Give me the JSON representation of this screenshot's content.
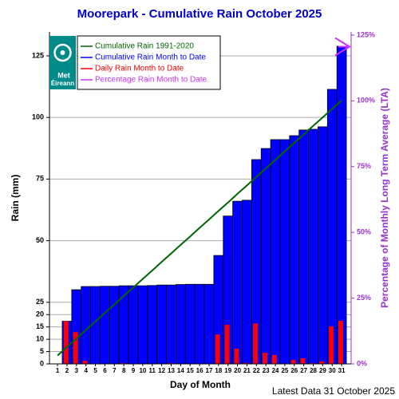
{
  "chart_data": {
    "type": "bar",
    "title": "Moorepark - Cumulative Rain October   2025",
    "xlabel": "Day of Month",
    "ylabel": "Rain (mm)",
    "y2label": "Percentage  of Monthly Long Term Average (LTA)",
    "footer": "Latest Data 31 October 2025",
    "logo": [
      "Met",
      "Éireann"
    ],
    "x": [
      1,
      2,
      3,
      4,
      5,
      6,
      7,
      8,
      9,
      10,
      11,
      12,
      13,
      14,
      15,
      16,
      17,
      18,
      19,
      20,
      21,
      22,
      23,
      24,
      25,
      26,
      27,
      28,
      29,
      30,
      31
    ],
    "xlim": [
      0.15,
      32
    ],
    "ylim": [
      0,
      134.7
    ],
    "yticks": [
      0,
      5,
      10,
      15,
      20,
      25,
      50,
      75,
      100,
      125
    ],
    "y2lim": [
      0,
      126.2
    ],
    "y2ticks": [
      {
        "value": 0,
        "label": "0%"
      },
      {
        "value": 25,
        "label": "25%"
      },
      {
        "value": 50,
        "label": "50%"
      },
      {
        "value": 75,
        "label": "75%"
      },
      {
        "value": 100,
        "label": "100%"
      },
      {
        "value": 125,
        "label": "125%"
      }
    ],
    "grid": true,
    "series": [
      {
        "name": "Cumulative Rain 1991-2020",
        "color": "#006600",
        "kind": "line",
        "values": [
          3.4,
          6.9,
          10.3,
          13.8,
          17.2,
          20.7,
          24.1,
          27.6,
          31.0,
          34.5,
          37.9,
          41.4,
          44.8,
          48.3,
          51.7,
          55.2,
          58.6,
          62.1,
          65.5,
          69.0,
          72.4,
          75.9,
          79.3,
          82.8,
          86.2,
          89.7,
          93.1,
          96.6,
          100.0,
          103.5,
          106.9
        ]
      },
      {
        "name": "Cumulative Rain Month to Date",
        "color": "#0000ff",
        "kind": "bar",
        "values": [
          0,
          17.3,
          30.1,
          31.4,
          31.4,
          31.5,
          31.5,
          31.7,
          31.7,
          31.7,
          31.8,
          32.0,
          32.0,
          32.2,
          32.3,
          32.3,
          32.3,
          44.0,
          60.0,
          66.0,
          66.4,
          82.9,
          87.4,
          91.0,
          91.0,
          92.6,
          94.9,
          95.2,
          96.2,
          111.4,
          128.9
        ]
      },
      {
        "name": "Daily Rain Month to Date",
        "color": "#ff0000",
        "kind": "bar",
        "values": [
          0,
          17.3,
          12.9,
          1.3,
          0,
          0,
          0,
          0.3,
          0,
          0,
          0,
          0,
          0.3,
          0,
          0,
          0,
          0,
          11.9,
          15.9,
          6.2,
          0.4,
          16.4,
          4.5,
          3.6,
          0,
          1.6,
          2.3,
          0.3,
          1.0,
          15.2,
          17.5
        ]
      },
      {
        "name": "Percentage Rain Month to Date",
        "color": "#cc33ff",
        "kind": "arrow",
        "axis": "y2",
        "values": [
          null,
          null,
          null,
          null,
          null,
          null,
          null,
          null,
          null,
          null,
          null,
          null,
          null,
          null,
          null,
          null,
          null,
          null,
          null,
          null,
          null,
          null,
          null,
          null,
          null,
          null,
          null,
          null,
          null,
          null,
          120.6
        ]
      }
    ]
  }
}
